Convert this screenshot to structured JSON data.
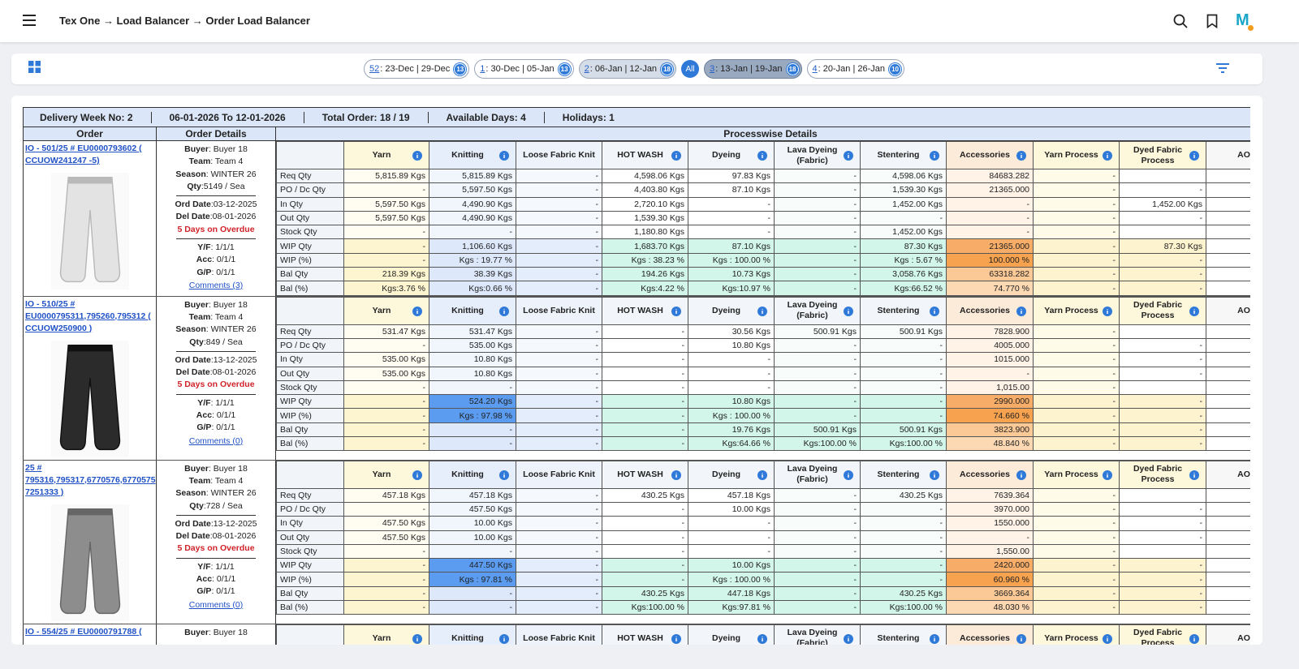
{
  "header": {
    "breadcrumb": "Tex One → Load Balancer → Order Load Balancer",
    "logo": "M"
  },
  "weeks": [
    {
      "no": "52",
      "range": ": 23-Dec | 29-Dec",
      "count": "13"
    },
    {
      "no": "1",
      "range": ": 30-Dec | 05-Jan",
      "count": "13"
    },
    {
      "no": "2",
      "range": ": 06-Jan | 12-Jan",
      "count": "18"
    },
    {
      "label": "All"
    },
    {
      "no": "3",
      "range": ": 13-Jan | 19-Jan",
      "count": "18"
    },
    {
      "no": "4",
      "range": ": 20-Jan | 26-Jan",
      "count": "10"
    }
  ],
  "summary": [
    "Delivery Week No: 2",
    "06-01-2026 To 12-01-2026",
    "Total Order: 18 / 19",
    "Available Days: 4",
    "Holidays: 1"
  ],
  "table": {
    "headers": [
      "Order",
      "Order Details",
      "Processwise Details"
    ],
    "columns": [
      "Yarn",
      "Knitting",
      "Loose Fabric Knit",
      "HOT WASH",
      "Dyeing",
      "Lava Dyeing (Fabric)",
      "Stentering",
      "Accessories",
      "Yarn Process",
      "Dyed Fabric Process",
      "AOP"
    ],
    "row_labels": [
      "Req Qty",
      "PO / Dc Qty",
      "In Qty",
      "Out Qty",
      "Stock Qty",
      "WIP Qty",
      "WIP (%)",
      "Bal Qty",
      "Bal (%)"
    ],
    "orders": [
      {
        "link": "IO - 501/25 # EU0000793602 ( CCUOW241247 -5)",
        "details": [
          [
            {
              "label": "Buyer",
              "value": ": Buyer 18"
            },
            {
              "label": "Team",
              "value": ": Team 4"
            },
            {
              "label": "Season",
              "value": ": WINTER 26"
            },
            {
              "label": "Qty",
              "value": ":5149 / Sea"
            }
          ],
          [
            {
              "label": "Ord Date",
              "value": ":03-12-2025"
            },
            {
              "label": "Del Date",
              "value": ":08-01-2026"
            }
          ],
          [
            {
              "label": "Y/F",
              "value": ": 1/1/1"
            },
            {
              "label": "Acc",
              "value": ": 0/1/1"
            },
            {
              "label": "G/P",
              "value": ": 0/1/1"
            }
          ]
        ],
        "overdue": "5 Days on Overdue",
        "comments": "Comments (3)",
        "cells": [
          [
            "5,815.89 Kgs",
            "5,815.89 Kgs",
            "-",
            "4,598.06 Kgs",
            "97.83 Kgs",
            "-",
            "4,598.06 Kgs",
            "84683.282",
            "-",
            null
          ],
          [
            "-",
            "5,597.50 Kgs",
            "-",
            "4,403.80 Kgs",
            "87.10 Kgs",
            "-",
            "1,539.30 Kgs",
            "21365.000",
            "-",
            "-"
          ],
          [
            "5,597.50 Kgs",
            "4,490.90 Kgs",
            "-",
            "2,720.10 Kgs",
            "-",
            "-",
            "1,452.00 Kgs",
            "-",
            "-",
            "1,452.00 Kgs"
          ],
          [
            "5,597.50 Kgs",
            "4,490.90 Kgs",
            "-",
            "1,539.30 Kgs",
            "-",
            "-",
            "-",
            "-",
            "-",
            "-"
          ],
          [
            "-",
            "-",
            "-",
            "1,180.80 Kgs",
            "-",
            "-",
            "1,452.00 Kgs",
            "-",
            "-",
            null
          ],
          [
            "-",
            "1,106.60 Kgs",
            "-",
            "1,683.70 Kgs",
            "87.10 Kgs",
            "-",
            "87.30 Kgs",
            "21365.000",
            "-",
            "87.30 Kgs"
          ],
          [
            "-",
            "Kgs : 19.77 %",
            "-",
            "Kgs : 38.23 %",
            "Kgs : 100.00 %",
            "-",
            "Kgs : 5.67 %",
            "100.000 %",
            "-",
            "-"
          ],
          [
            "218.39 Kgs",
            "38.39 Kgs",
            "-",
            "194.26 Kgs",
            "10.73 Kgs",
            "-",
            "3,058.76 Kgs",
            "63318.282",
            "-",
            "-"
          ],
          [
            "Kgs:3.76 %",
            "Kgs:0.66 %",
            "-",
            "Kgs:4.22 %",
            "Kgs:10.97 %",
            "-",
            "Kgs:66.52 %",
            "74.770 %",
            "-",
            "-"
          ]
        ]
      },
      {
        "link": "IO - 510/25 # EU0000795311,795260,795312 ( CCUOW250900 )",
        "details": [
          [
            {
              "label": "Buyer",
              "value": ": Buyer 18"
            },
            {
              "label": "Team",
              "value": ": Team 4"
            },
            {
              "label": "Season",
              "value": ": WINTER 26"
            },
            {
              "label": "Qty",
              "value": ":849 / Sea"
            }
          ],
          [
            {
              "label": "Ord Date",
              "value": ":13-12-2025"
            },
            {
              "label": "Del Date",
              "value": ":08-01-2026"
            }
          ],
          [
            {
              "label": "Y/F",
              "value": ": 1/1/1"
            },
            {
              "label": "Acc",
              "value": ": 0/1/1"
            },
            {
              "label": "G/P",
              "value": ": 0/1/1"
            }
          ]
        ],
        "overdue": "5 Days on Overdue",
        "comments": "Comments (0)",
        "cells": [
          [
            "531.47 Kgs",
            "531.47 Kgs",
            "-",
            "-",
            "30.56 Kgs",
            "500.91 Kgs",
            "500.91 Kgs",
            "7828.900",
            "-",
            null
          ],
          [
            "-",
            "535.00 Kgs",
            "-",
            "-",
            "10.80 Kgs",
            "-",
            "-",
            "4005.000",
            "-",
            "-"
          ],
          [
            "535.00 Kgs",
            "10.80 Kgs",
            "-",
            "-",
            "-",
            "-",
            "-",
            "1015.000",
            "-",
            "-"
          ],
          [
            "535.00 Kgs",
            "10.80 Kgs",
            "-",
            "-",
            "-",
            "-",
            "-",
            "-",
            "-",
            "-"
          ],
          [
            "-",
            "-",
            "-",
            "-",
            "-",
            "-",
            "-",
            "1,015.00",
            "-",
            null
          ],
          [
            "-",
            "524.20 Kgs",
            "-",
            "-",
            "10.80 Kgs",
            "-",
            "-",
            "2990.000",
            "-",
            "-"
          ],
          [
            "-",
            "Kgs : 97.98 %",
            "-",
            "-",
            "Kgs : 100.00 %",
            "-",
            "-",
            "74.660 %",
            "-",
            "-"
          ],
          [
            "-",
            "-",
            "-",
            "-",
            "19.76 Kgs",
            "500.91 Kgs",
            "500.91 Kgs",
            "3823.900",
            "-",
            "-"
          ],
          [
            "-",
            "-",
            "-",
            "-",
            "Kgs:64.66 %",
            "Kgs:100.00 %",
            "Kgs:100.00 %",
            "48.840 %",
            "-",
            "-"
          ]
        ]
      },
      {
        "link": "25 # 795316,795317,6770576,6770575 7251333 )",
        "details": [
          [
            {
              "label": "Buyer",
              "value": ": Buyer 18"
            },
            {
              "label": "Team",
              "value": ": Team 4"
            },
            {
              "label": "Season",
              "value": ": WINTER 26"
            },
            {
              "label": "Qty",
              "value": ":728 / Sea"
            }
          ],
          [
            {
              "label": "Ord Date",
              "value": ":13-12-2025"
            },
            {
              "label": "Del Date",
              "value": ":08-01-2026"
            }
          ],
          [
            {
              "label": "Y/F",
              "value": ": 1/1/1"
            },
            {
              "label": "Acc",
              "value": ": 0/1/1"
            },
            {
              "label": "G/P",
              "value": ": 0/1/1"
            }
          ]
        ],
        "overdue": "5 Days on Overdue",
        "comments": "Comments (0)",
        "cells": [
          [
            "457.18 Kgs",
            "457.18 Kgs",
            "-",
            "430.25 Kgs",
            "457.18 Kgs",
            "-",
            "430.25 Kgs",
            "7639.364",
            "-",
            null
          ],
          [
            "-",
            "457.50 Kgs",
            "-",
            "-",
            "10.00 Kgs",
            "-",
            "-",
            "3970.000",
            "-",
            "-"
          ],
          [
            "457.50 Kgs",
            "10.00 Kgs",
            "-",
            "-",
            "-",
            "-",
            "-",
            "1550.000",
            "-",
            "-"
          ],
          [
            "457.50 Kgs",
            "10.00 Kgs",
            "-",
            "-",
            "-",
            "-",
            "-",
            "-",
            "-",
            "-"
          ],
          [
            "-",
            "-",
            "-",
            "-",
            "-",
            "-",
            "-",
            "1,550.00",
            "-",
            null
          ],
          [
            "-",
            "447.50 Kgs",
            "-",
            "-",
            "10.00 Kgs",
            "-",
            "-",
            "2420.000",
            "-",
            "-"
          ],
          [
            "-",
            "Kgs : 97.81 %",
            "-",
            "-",
            "Kgs : 100.00 %",
            "-",
            "-",
            "60.960 %",
            "-",
            "-"
          ],
          [
            "-",
            "-",
            "-",
            "430.25 Kgs",
            "447.18 Kgs",
            "-",
            "430.25 Kgs",
            "3669.364",
            "-",
            "-"
          ],
          [
            "-",
            "-",
            "-",
            "Kgs:100.00 %",
            "Kgs:97.81 %",
            "-",
            "Kgs:100.00 %",
            "48.030 %",
            "-",
            "-"
          ]
        ]
      },
      {
        "link": "IO - 554/25 # EU0000791788 (",
        "details": [
          [
            {
              "label": "Buyer",
              "value": ": Buyer 18"
            }
          ]
        ]
      }
    ]
  }
}
